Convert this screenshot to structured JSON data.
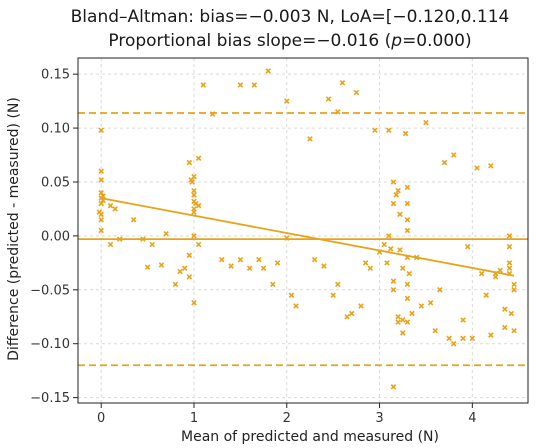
{
  "chart_data": {
    "type": "scatter",
    "title_line1": "Bland–Altman: bias=−0.003 N, LoA=[−0.120,0.114",
    "title_line2_pre": "Proportional bias slope=−0.016 (",
    "title_line2_italic": "p",
    "title_line2_post": "=0.000)",
    "xlabel": "Mean of predicted and measured (N)",
    "ylabel": "Difference (predicted - measured) (N)",
    "xlim": [
      -0.25,
      4.6
    ],
    "ylim": [
      -0.155,
      0.165
    ],
    "xticks": [
      0,
      1,
      2,
      3,
      4
    ],
    "xtick_labels": [
      "0",
      "1",
      "2",
      "3",
      "4"
    ],
    "yticks": [
      0.15,
      0.1,
      0.05,
      0.0,
      -0.05,
      -0.1,
      -0.15
    ],
    "ytick_labels": [
      "0.15",
      "0.10",
      "0.05",
      "0.00",
      "−0.05",
      "−0.10",
      "−0.15"
    ],
    "grid": true,
    "color": "#e8a317",
    "bias": -0.003,
    "loa_upper": 0.114,
    "loa_lower": -0.12,
    "regression": {
      "x": [
        0.0,
        4.45
      ],
      "y": [
        0.035,
        -0.037
      ]
    },
    "points": [
      [
        0.0,
        0.098
      ],
      [
        0.0,
        0.06
      ],
      [
        0.0,
        0.052
      ],
      [
        0.0,
        0.04
      ],
      [
        0.0,
        0.035
      ],
      [
        0.0,
        0.03
      ],
      [
        0.0,
        0.02
      ],
      [
        0.0,
        0.015
      ],
      [
        0.0,
        0.005
      ],
      [
        -0.02,
        0.022
      ],
      [
        0.02,
        0.033
      ],
      [
        0.02,
        0.037
      ],
      [
        0.1,
        -0.008
      ],
      [
        0.1,
        0.028
      ],
      [
        0.15,
        0.025
      ],
      [
        0.2,
        -0.003
      ],
      [
        0.35,
        0.015
      ],
      [
        0.45,
        -0.003
      ],
      [
        0.5,
        -0.029
      ],
      [
        0.55,
        -0.008
      ],
      [
        0.65,
        -0.027
      ],
      [
        0.7,
        0.002
      ],
      [
        0.8,
        -0.045
      ],
      [
        0.85,
        -0.033
      ],
      [
        0.9,
        -0.03
      ],
      [
        0.95,
        -0.038
      ],
      [
        0.95,
        -0.018
      ],
      [
        0.95,
        0.068
      ],
      [
        0.97,
        0.052
      ],
      [
        0.98,
        0.05
      ],
      [
        1.0,
        0.055
      ],
      [
        1.0,
        0.042
      ],
      [
        1.0,
        0.038
      ],
      [
        1.0,
        0.032
      ],
      [
        1.0,
        0.025
      ],
      [
        1.0,
        0.022
      ],
      [
        1.0,
        0.0
      ],
      [
        1.0,
        -0.062
      ],
      [
        1.02,
        0.03
      ],
      [
        1.05,
        0.072
      ],
      [
        1.05,
        0.028
      ],
      [
        1.05,
        -0.008
      ],
      [
        1.1,
        0.14
      ],
      [
        1.2,
        0.113
      ],
      [
        1.3,
        -0.022
      ],
      [
        1.4,
        -0.028
      ],
      [
        1.5,
        -0.022
      ],
      [
        1.5,
        0.14
      ],
      [
        1.6,
        -0.03
      ],
      [
        1.65,
        0.14
      ],
      [
        1.7,
        -0.022
      ],
      [
        1.75,
        -0.03
      ],
      [
        1.8,
        0.153
      ],
      [
        1.85,
        -0.045
      ],
      [
        1.9,
        -0.025
      ],
      [
        2.0,
        0.125
      ],
      [
        2.0,
        -0.002
      ],
      [
        2.05,
        -0.055
      ],
      [
        2.1,
        -0.065
      ],
      [
        2.25,
        0.09
      ],
      [
        2.3,
        -0.022
      ],
      [
        2.4,
        -0.028
      ],
      [
        2.45,
        0.127
      ],
      [
        2.5,
        -0.055
      ],
      [
        2.55,
        -0.045
      ],
      [
        2.55,
        0.115
      ],
      [
        2.6,
        0.142
      ],
      [
        2.65,
        -0.075
      ],
      [
        2.7,
        -0.072
      ],
      [
        2.75,
        0.133
      ],
      [
        2.8,
        -0.065
      ],
      [
        2.85,
        -0.025
      ],
      [
        2.9,
        -0.03
      ],
      [
        2.95,
        0.098
      ],
      [
        3.0,
        -0.015
      ],
      [
        3.05,
        -0.008
      ],
      [
        3.08,
        -0.025
      ],
      [
        3.1,
        0.098
      ],
      [
        3.1,
        0.0
      ],
      [
        3.12,
        -0.012
      ],
      [
        3.15,
        0.05
      ],
      [
        3.15,
        0.03
      ],
      [
        3.15,
        -0.042
      ],
      [
        3.15,
        -0.05
      ],
      [
        3.15,
        -0.14
      ],
      [
        3.18,
        0.038
      ],
      [
        3.2,
        0.042
      ],
      [
        3.2,
        -0.075
      ],
      [
        3.2,
        -0.08
      ],
      [
        3.22,
        0.02
      ],
      [
        3.22,
        -0.013
      ],
      [
        3.25,
        -0.03
      ],
      [
        3.25,
        -0.078
      ],
      [
        3.25,
        -0.09
      ],
      [
        3.28,
        0.095
      ],
      [
        3.3,
        0.045
      ],
      [
        3.3,
        0.03
      ],
      [
        3.3,
        0.015
      ],
      [
        3.3,
        0.005
      ],
      [
        3.3,
        -0.02
      ],
      [
        3.3,
        -0.045
      ],
      [
        3.3,
        -0.058
      ],
      [
        3.3,
        -0.08
      ],
      [
        3.32,
        -0.035
      ],
      [
        3.35,
        -0.072
      ],
      [
        3.4,
        -0.02
      ],
      [
        3.45,
        -0.065
      ],
      [
        3.5,
        0.105
      ],
      [
        3.55,
        -0.062
      ],
      [
        3.6,
        -0.088
      ],
      [
        3.65,
        -0.05
      ],
      [
        3.7,
        0.068
      ],
      [
        3.75,
        -0.095
      ],
      [
        3.8,
        0.075
      ],
      [
        3.8,
        -0.1
      ],
      [
        3.9,
        -0.078
      ],
      [
        3.9,
        -0.095
      ],
      [
        3.95,
        -0.01
      ],
      [
        4.0,
        -0.095
      ],
      [
        4.05,
        0.063
      ],
      [
        4.1,
        -0.035
      ],
      [
        4.15,
        -0.055
      ],
      [
        4.2,
        0.065
      ],
      [
        4.2,
        -0.092
      ],
      [
        4.25,
        -0.035
      ],
      [
        4.25,
        -0.038
      ],
      [
        4.3,
        -0.032
      ],
      [
        4.35,
        -0.085
      ],
      [
        4.35,
        -0.068
      ],
      [
        4.4,
        0.0
      ],
      [
        4.4,
        -0.01
      ],
      [
        4.4,
        -0.025
      ],
      [
        4.4,
        -0.03
      ],
      [
        4.4,
        -0.035
      ],
      [
        4.42,
        -0.072
      ],
      [
        4.45,
        -0.045
      ],
      [
        4.45,
        -0.05
      ],
      [
        4.45,
        -0.088
      ]
    ]
  }
}
